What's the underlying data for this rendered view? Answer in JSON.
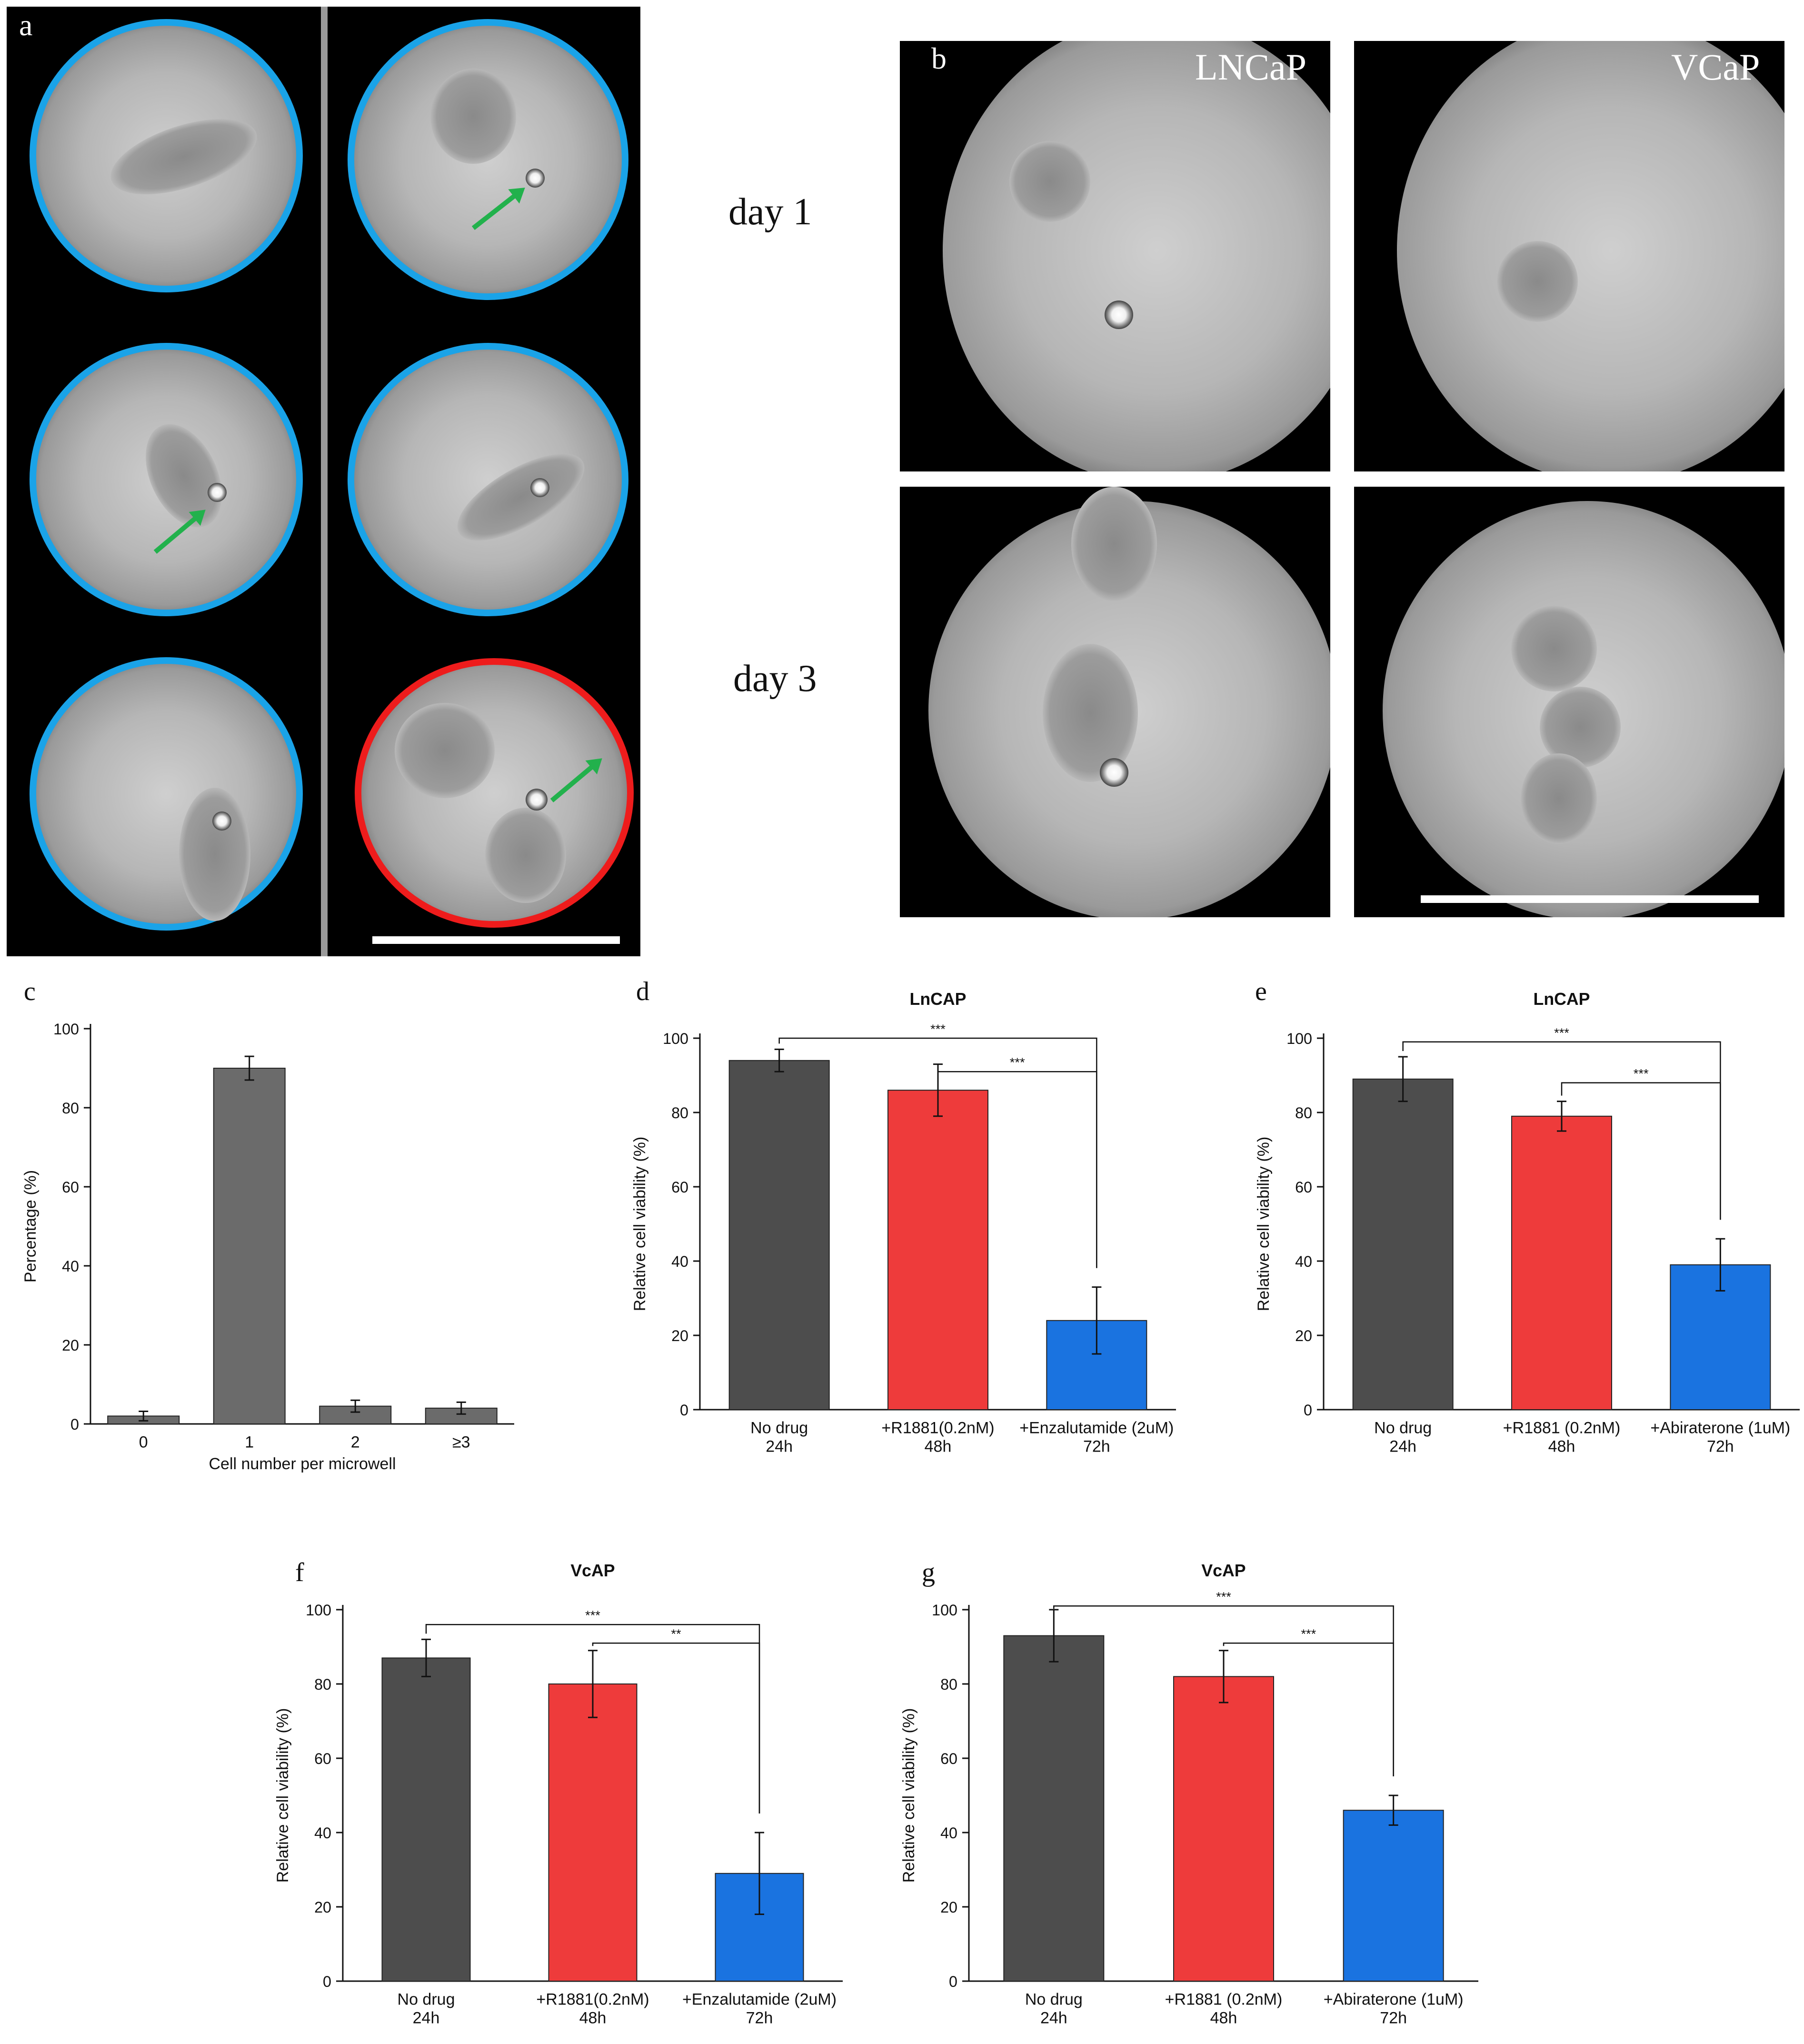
{
  "panels": {
    "a": {
      "letter": "a"
    },
    "b": {
      "letter": "b",
      "col1_label": "LNCaP",
      "col2_label": "VCaP",
      "row1_label": "day 1",
      "row2_label": "day 3"
    },
    "c": {
      "letter": "c"
    },
    "d": {
      "letter": "d"
    },
    "e": {
      "letter": "e"
    },
    "f": {
      "letter": "f"
    },
    "g": {
      "letter": "g"
    }
  },
  "colors": {
    "well_ring_single": "#1aa3e8",
    "well_ring_multi": "#ee1c1c",
    "arrow": "#22b14c",
    "bar_dark": "#4d4d4d",
    "bar_red": "#ee3b3b",
    "bar_blue": "#1a73e0",
    "bar_gray": "#6b6b6b"
  },
  "chart_data": [
    {
      "id": "c",
      "type": "bar",
      "title": "",
      "xlabel": "Cell number per microwell",
      "ylabel": "Percentage (%)",
      "ylim": [
        0,
        100
      ],
      "yticks": [
        "0",
        "20",
        "40",
        "60",
        "80",
        "100"
      ],
      "categories": [
        "0",
        "1",
        "2",
        "≥3"
      ],
      "values": [
        2,
        90,
        4.5,
        4
      ],
      "errors": [
        1.2,
        3,
        1.5,
        1.5
      ],
      "bar_colors": [
        "#6b6b6b",
        "#6b6b6b",
        "#6b6b6b",
        "#6b6b6b"
      ]
    },
    {
      "id": "d",
      "type": "bar",
      "title": "LnCAP",
      "xlabel": "",
      "ylabel": "Relative cell viability (%)",
      "ylim": [
        0,
        100
      ],
      "yticks": [
        "0",
        "20",
        "40",
        "60",
        "80",
        "100"
      ],
      "categories": [
        [
          "No drug",
          "24h"
        ],
        [
          "+R1881(0.2nM)",
          "48h"
        ],
        [
          "+Enzalutamide (2uM)",
          "72h"
        ]
      ],
      "values": [
        94,
        86,
        24
      ],
      "errors": [
        3,
        7,
        9
      ],
      "bar_colors": [
        "#4d4d4d",
        "#ee3b3b",
        "#1a73e0"
      ],
      "significance": [
        {
          "from": 0,
          "to": 2,
          "label": "***",
          "level": 100
        },
        {
          "from": 1,
          "to": 2,
          "label": "***",
          "level": 91
        }
      ]
    },
    {
      "id": "e",
      "type": "bar",
      "title": "LnCAP",
      "xlabel": "",
      "ylabel": "Relative cell viability (%)",
      "ylim": [
        0,
        100
      ],
      "yticks": [
        "0",
        "20",
        "40",
        "60",
        "80",
        "100"
      ],
      "categories": [
        [
          "No drug",
          "24h"
        ],
        [
          "+R1881 (0.2nM)",
          "48h"
        ],
        [
          "+Abiraterone (1uM)",
          "72h"
        ]
      ],
      "values": [
        89,
        79,
        39
      ],
      "errors": [
        6,
        4,
        7
      ],
      "bar_colors": [
        "#4d4d4d",
        "#ee3b3b",
        "#1a73e0"
      ],
      "significance": [
        {
          "from": 0,
          "to": 2,
          "label": "***",
          "level": 99
        },
        {
          "from": 1,
          "to": 2,
          "label": "***",
          "level": 88
        }
      ]
    },
    {
      "id": "f",
      "type": "bar",
      "title": "VcAP",
      "xlabel": "",
      "ylabel": "Relative cell viability (%)",
      "ylim": [
        0,
        100
      ],
      "yticks": [
        "0",
        "20",
        "40",
        "60",
        "80",
        "100"
      ],
      "categories": [
        [
          "No drug",
          "24h"
        ],
        [
          "+R1881(0.2nM)",
          "48h"
        ],
        [
          "+Enzalutamide (2uM)",
          "72h"
        ]
      ],
      "values": [
        87,
        80,
        29
      ],
      "errors": [
        5,
        9,
        11
      ],
      "bar_colors": [
        "#4d4d4d",
        "#ee3b3b",
        "#1a73e0"
      ],
      "significance": [
        {
          "from": 0,
          "to": 2,
          "label": "***",
          "level": 96
        },
        {
          "from": 1,
          "to": 2,
          "label": "**",
          "level": 91
        }
      ]
    },
    {
      "id": "g",
      "type": "bar",
      "title": "VcAP",
      "xlabel": "",
      "ylabel": "Relative cell viability (%)",
      "ylim": [
        0,
        100
      ],
      "yticks": [
        "0",
        "20",
        "40",
        "60",
        "80",
        "100"
      ],
      "categories": [
        [
          "No drug",
          "24h"
        ],
        [
          "+R1881 (0.2nM)",
          "48h"
        ],
        [
          "+Abiraterone (1uM)",
          "72h"
        ]
      ],
      "values": [
        93,
        82,
        46
      ],
      "errors": [
        7,
        7,
        4
      ],
      "bar_colors": [
        "#4d4d4d",
        "#ee3b3b",
        "#1a73e0"
      ],
      "significance": [
        {
          "from": 0,
          "to": 2,
          "label": "***",
          "level": 101
        },
        {
          "from": 1,
          "to": 2,
          "label": "***",
          "level": 91
        }
      ]
    }
  ]
}
